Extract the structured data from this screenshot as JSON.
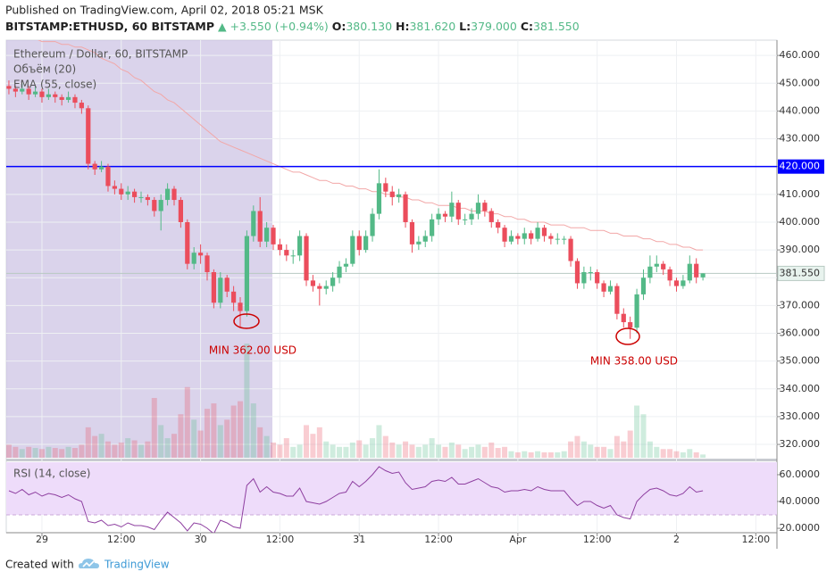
{
  "header": {
    "published": "Published on TradingView.com, April 02, 2018 05:21 MSK",
    "symbol": "BITSTAMP:ETHUSD, 60 BITSTAMP",
    "change": "+3.550 (+0.94%)",
    "fields": [
      {
        "label": "O:",
        "value": "380.130"
      },
      {
        "label": "H:",
        "value": "381.620"
      },
      {
        "label": "L:",
        "value": "379.000"
      },
      {
        "label": "C:",
        "value": "381.550"
      }
    ]
  },
  "footer": {
    "created": "Created with",
    "brand": "TradingView"
  },
  "chart_data": [
    {
      "type": "candlestick",
      "title": "Ethereum / Dollar, 60, BITSTAMP",
      "up_color": "#53b987",
      "down_color": "#eb4d5c",
      "grid": true,
      "xlim": [
        -0.4,
        116.2
      ],
      "xticks": [
        {
          "value": 5,
          "label": "29"
        },
        {
          "value": 17,
          "label": "12:00"
        },
        {
          "value": 29,
          "label": "30"
        },
        {
          "value": 41,
          "label": "12:00"
        },
        {
          "value": 53,
          "label": "31"
        },
        {
          "value": 65,
          "label": "12:00"
        },
        {
          "value": 77,
          "label": "Apr"
        },
        {
          "value": 89,
          "label": "12:00"
        },
        {
          "value": 101,
          "label": "2"
        },
        {
          "value": 113,
          "label": "12:00"
        }
      ],
      "ylim": [
        315.2,
        465.5
      ],
      "yticks": [
        {
          "value": 320,
          "label": "320.000"
        },
        {
          "value": 330,
          "label": "330.000"
        },
        {
          "value": 340,
          "label": "340.000"
        },
        {
          "value": 350,
          "label": "350.000"
        },
        {
          "value": 360,
          "label": "360.000"
        },
        {
          "value": 370,
          "label": "370.000"
        },
        {
          "value": 380,
          "label": "380.000"
        },
        {
          "value": 390,
          "label": "390.000"
        },
        {
          "value": 400,
          "label": "400.000"
        },
        {
          "value": 410,
          "label": "410.000"
        },
        {
          "value": 420,
          "label": "420.000"
        },
        {
          "value": 430,
          "label": "430.000"
        },
        {
          "value": 440,
          "label": "440.000"
        },
        {
          "value": 450,
          "label": "450.000"
        },
        {
          "value": 460,
          "label": "460.000"
        }
      ],
      "ohlc": [
        [
          449,
          451,
          446,
          448
        ],
        [
          448,
          449,
          445,
          447
        ],
        [
          447,
          450,
          446,
          448
        ],
        [
          448,
          449,
          444,
          446
        ],
        [
          446,
          449,
          445,
          447
        ],
        [
          447,
          448,
          443,
          445
        ],
        [
          445,
          448,
          444,
          446
        ],
        [
          446,
          447,
          443,
          445
        ],
        [
          445,
          446,
          442,
          444
        ],
        [
          444,
          447,
          443,
          445
        ],
        [
          445,
          446,
          441,
          443
        ],
        [
          443,
          444,
          439,
          441
        ],
        [
          441,
          442,
          419,
          421
        ],
        [
          421,
          422,
          417,
          419
        ],
        [
          419,
          422,
          418,
          420
        ],
        [
          420,
          421,
          411,
          413
        ],
        [
          413,
          415,
          410,
          412
        ],
        [
          412,
          414,
          408,
          410
        ],
        [
          410,
          413,
          408,
          411
        ],
        [
          411,
          412,
          407,
          409
        ],
        [
          409,
          411,
          407,
          409
        ],
        [
          409,
          410,
          406,
          408
        ],
        [
          408,
          409,
          402,
          404
        ],
        [
          404,
          410,
          397,
          408
        ],
        [
          408,
          414,
          406,
          412
        ],
        [
          412,
          413,
          406,
          408
        ],
        [
          408,
          409,
          398,
          400
        ],
        [
          400,
          401,
          383,
          385
        ],
        [
          385,
          391,
          383,
          389
        ],
        [
          389,
          392,
          385,
          388
        ],
        [
          388,
          389,
          379,
          382
        ],
        [
          382,
          383,
          369,
          371
        ],
        [
          371,
          382,
          369,
          380
        ],
        [
          380,
          381,
          373,
          375
        ],
        [
          375,
          377,
          368,
          371
        ],
        [
          371,
          373,
          362,
          368
        ],
        [
          368,
          397,
          366,
          395
        ],
        [
          395,
          406,
          393,
          404
        ],
        [
          404,
          409,
          391,
          393
        ],
        [
          393,
          400,
          391,
          398
        ],
        [
          398,
          399,
          390,
          392
        ],
        [
          392,
          394,
          388,
          390
        ],
        [
          390,
          392,
          386,
          388
        ],
        [
          388,
          390,
          385,
          388
        ],
        [
          388,
          397,
          386,
          395
        ],
        [
          395,
          396,
          377,
          379
        ],
        [
          379,
          381,
          375,
          377
        ],
        [
          377,
          378,
          370,
          376
        ],
        [
          376,
          379,
          374,
          377
        ],
        [
          377,
          382,
          375,
          380
        ],
        [
          380,
          386,
          378,
          384
        ],
        [
          384,
          387,
          382,
          385
        ],
        [
          385,
          397,
          384,
          395
        ],
        [
          395,
          397,
          388,
          390
        ],
        [
          390,
          397,
          389,
          395
        ],
        [
          395,
          405,
          393,
          403
        ],
        [
          403,
          419,
          401,
          414
        ],
        [
          414,
          416,
          409,
          411
        ],
        [
          411,
          413,
          406,
          409
        ],
        [
          409,
          412,
          407,
          410
        ],
        [
          410,
          411,
          398,
          400
        ],
        [
          400,
          401,
          389,
          392
        ],
        [
          392,
          395,
          390,
          393
        ],
        [
          393,
          397,
          391,
          395
        ],
        [
          395,
          403,
          393,
          401
        ],
        [
          401,
          405,
          399,
          403
        ],
        [
          403,
          404,
          400,
          402
        ],
        [
          402,
          411,
          400,
          407
        ],
        [
          407,
          408,
          399,
          401
        ],
        [
          401,
          403,
          399,
          401
        ],
        [
          401,
          405,
          399,
          403
        ],
        [
          403,
          410,
          401,
          407
        ],
        [
          407,
          408,
          402,
          404
        ],
        [
          404,
          405,
          398,
          400
        ],
        [
          400,
          401,
          396,
          398
        ],
        [
          398,
          399,
          391,
          393
        ],
        [
          393,
          397,
          392,
          395
        ],
        [
          395,
          396,
          392,
          394
        ],
        [
          394,
          398,
          392,
          396
        ],
        [
          396,
          397,
          392,
          394
        ],
        [
          394,
          400,
          393,
          398
        ],
        [
          398,
          399,
          393,
          395
        ],
        [
          395,
          396,
          392,
          394
        ],
        [
          394,
          396,
          392,
          394
        ],
        [
          394,
          395,
          392,
          394
        ],
        [
          394,
          395,
          384,
          386
        ],
        [
          386,
          387,
          376,
          378
        ],
        [
          378,
          384,
          376,
          382
        ],
        [
          382,
          384,
          379,
          382
        ],
        [
          382,
          383,
          376,
          378
        ],
        [
          378,
          379,
          373,
          375
        ],
        [
          375,
          379,
          374,
          377
        ],
        [
          377,
          378,
          365,
          367
        ],
        [
          367,
          369,
          362,
          364
        ],
        [
          364,
          366,
          358,
          362
        ],
        [
          362,
          376,
          360,
          374
        ],
        [
          374,
          383,
          372,
          380
        ],
        [
          380,
          388,
          378,
          384
        ],
        [
          384,
          388,
          382,
          385
        ],
        [
          385,
          386,
          381,
          383
        ],
        [
          383,
          384,
          377,
          379
        ],
        [
          379,
          380,
          375,
          377
        ],
        [
          377,
          381,
          376,
          379
        ],
        [
          379,
          388,
          378,
          385
        ],
        [
          385,
          387,
          378,
          380.13
        ],
        [
          380.13,
          381.62,
          379,
          381.55
        ]
      ],
      "volume": {
        "name": "Объём (20)",
        "ylim": [
          0,
          384
        ],
        "values": [
          12,
          10,
          8,
          10,
          9,
          8,
          10,
          9,
          8,
          10,
          9,
          12,
          28,
          20,
          22,
          15,
          12,
          14,
          18,
          16,
          12,
          15,
          55,
          30,
          18,
          22,
          40,
          65,
          35,
          25,
          45,
          50,
          30,
          35,
          48,
          52,
          105,
          50,
          28,
          20,
          14,
          12,
          18,
          10,
          12,
          30,
          22,
          28,
          15,
          12,
          10,
          10,
          14,
          16,
          12,
          18,
          30,
          20,
          14,
          12,
          15,
          12,
          10,
          12,
          18,
          12,
          10,
          14,
          12,
          8,
          10,
          12,
          10,
          14,
          9,
          10,
          6,
          5,
          6,
          5,
          6,
          5,
          5,
          5,
          6,
          15,
          20,
          15,
          12,
          10,
          10,
          8,
          20,
          15,
          25,
          48,
          40,
          15,
          10,
          8,
          8,
          6,
          5,
          8,
          5,
          3
        ]
      },
      "ema": {
        "name": "EMA (55, close)",
        "color": "#f2a7a7",
        "values": [
          467,
          467,
          466,
          466,
          466,
          465,
          465,
          465,
          464,
          464,
          463,
          463,
          462,
          461,
          459,
          458,
          457,
          455,
          454,
          452,
          451,
          449,
          447,
          446,
          444,
          443,
          441,
          439,
          437,
          435,
          433,
          431,
          429,
          428,
          427,
          426,
          425,
          424,
          423,
          422,
          421,
          420,
          419,
          418,
          418,
          417,
          416,
          415,
          415,
          414,
          414,
          413,
          413,
          412,
          412,
          411,
          411,
          410,
          410,
          409,
          409,
          408,
          408,
          407,
          407,
          406,
          406,
          406,
          405,
          405,
          404,
          404,
          404,
          403,
          403,
          402,
          402,
          401,
          401,
          400,
          400,
          400,
          399,
          399,
          399,
          398,
          398,
          398,
          397,
          397,
          397,
          396,
          396,
          395,
          395,
          395,
          394,
          394,
          393,
          393,
          392,
          392,
          391,
          391,
          390,
          390
        ]
      },
      "hline": {
        "value": 420,
        "label": "420.000",
        "color": "#0000ff"
      },
      "last_price": {
        "value": 381.55,
        "label": "381.550",
        "color": "#b7c9c2"
      },
      "annotations": [
        {
          "text": "MIN 362.00 USD",
          "color": "#cc0000"
        },
        {
          "text": "MIN 358.00 USD",
          "color": "#cc0000"
        }
      ]
    },
    {
      "type": "line",
      "title": "RSI (14, close)",
      "color": "#8e3fa0",
      "band": [
        30,
        70
      ],
      "band_color": "#eedcfa",
      "ylim": [
        16.7,
        69.3
      ],
      "yticks": [
        {
          "value": 20,
          "label": "20.0000"
        },
        {
          "value": 40,
          "label": "40.0000"
        },
        {
          "value": 60,
          "label": "60.0000"
        }
      ],
      "values": [
        48,
        46,
        49,
        45,
        47,
        44,
        46,
        45,
        43,
        45,
        42,
        40,
        25,
        24,
        26,
        22,
        23,
        21,
        24,
        22,
        22,
        21,
        19,
        26,
        32,
        28,
        24,
        18,
        24,
        23,
        20,
        16,
        26,
        24,
        21,
        20,
        52,
        57,
        47,
        51,
        47,
        46,
        44,
        44,
        50,
        40,
        39,
        38,
        40,
        43,
        46,
        47,
        55,
        51,
        55,
        60,
        66,
        63,
        61,
        62,
        54,
        49,
        50,
        51,
        55,
        56,
        55,
        58,
        53,
        53,
        55,
        57,
        54,
        51,
        50,
        47,
        48,
        48,
        49,
        48,
        51,
        49,
        48,
        48,
        48,
        42,
        37,
        40,
        40,
        37,
        35,
        37,
        30,
        28,
        27,
        40,
        45,
        49,
        50,
        48,
        45,
        44,
        46,
        51,
        47,
        48
      ]
    }
  ]
}
